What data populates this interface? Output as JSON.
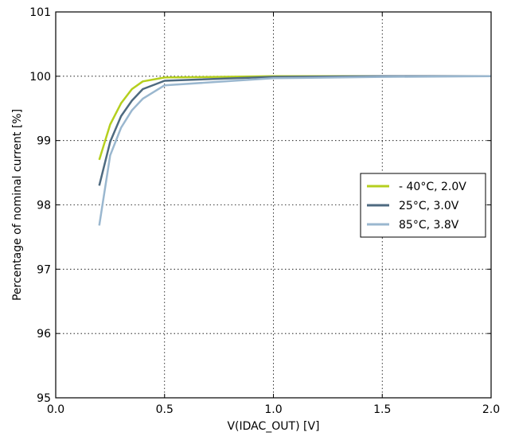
{
  "chart_data": {
    "type": "line",
    "title": "",
    "xlabel": "V(IDAC_OUT) [V]",
    "ylabel": "Percentage of nominal current [%]",
    "xlim": [
      0.0,
      2.0
    ],
    "ylim": [
      95,
      101
    ],
    "xticks": [
      "0.0",
      "0.5",
      "1.0",
      "1.5",
      "2.0"
    ],
    "yticks": [
      "95",
      "96",
      "97",
      "98",
      "99",
      "100",
      "101"
    ],
    "grid": true,
    "legend_position": "right",
    "series": [
      {
        "name": "- 40°C, 2.0V",
        "color": "#b5cf1e",
        "x": [
          0.2,
          0.25,
          0.3,
          0.35,
          0.4,
          0.5,
          1.0,
          1.5,
          2.0
        ],
        "y": [
          98.7,
          99.25,
          99.58,
          99.8,
          99.92,
          99.98,
          100.0,
          100.0,
          100.0
        ]
      },
      {
        "name": "25°C, 3.0V",
        "color": "#4e6a80",
        "x": [
          0.2,
          0.25,
          0.3,
          0.35,
          0.4,
          0.5,
          1.0,
          1.5,
          2.0
        ],
        "y": [
          98.3,
          98.98,
          99.38,
          99.62,
          99.8,
          99.93,
          99.99,
          100.0,
          100.0
        ]
      },
      {
        "name": "85°C, 3.8V",
        "color": "#9ab7cf",
        "x": [
          0.2,
          0.25,
          0.3,
          0.35,
          0.4,
          0.5,
          1.0,
          1.5,
          2.0
        ],
        "y": [
          97.68,
          98.77,
          99.2,
          99.47,
          99.65,
          99.86,
          99.97,
          99.99,
          100.0
        ]
      }
    ]
  }
}
